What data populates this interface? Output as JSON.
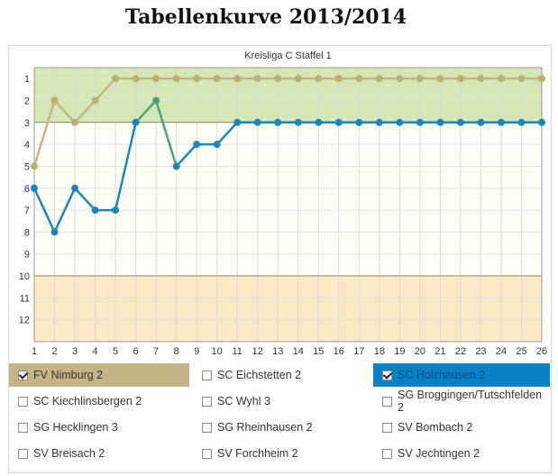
{
  "page": {
    "title": "Tabellenkurve 2013/2014"
  },
  "colors": {
    "band_top": "#d5e7b5",
    "band_mid": "#fffef6",
    "band_bottom": "#fbe9c6",
    "series_nimburg": "#c5b487",
    "series_nimburg_dot": "#bdb16e",
    "series_holzhausen": "#1c86ba",
    "series_green": "#4aa37a",
    "legend_selected_gold": "#c5b487",
    "legend_selected_blue": "#0a80c7"
  },
  "chart_data": {
    "type": "line",
    "title": "Kreisliga C Staffel 1",
    "x": [
      1,
      2,
      3,
      4,
      5,
      6,
      7,
      8,
      9,
      10,
      11,
      12,
      13,
      14,
      15,
      16,
      17,
      18,
      19,
      20,
      21,
      22,
      23,
      24,
      25,
      26
    ],
    "ylim": [
      1,
      12
    ],
    "y_reversed": true,
    "y_ticks": [
      1,
      2,
      3,
      4,
      5,
      6,
      7,
      8,
      9,
      10,
      11,
      12
    ],
    "bands": [
      {
        "from": 0.5,
        "to": 3,
        "color": "#d5e7b5"
      },
      {
        "from": 3,
        "to": 10,
        "color": "#fffef6"
      },
      {
        "from": 10,
        "to": 13,
        "color": "#fbe9c6"
      }
    ],
    "series": [
      {
        "name": "FV Nimburg 2",
        "color": "#c5b487",
        "values": [
          5,
          2,
          3,
          2,
          1,
          1,
          1,
          1,
          1,
          1,
          1,
          1,
          1,
          1,
          1,
          1,
          1,
          1,
          1,
          1,
          1,
          1,
          1,
          1,
          1,
          1
        ]
      },
      {
        "name": "SC Holzhausen 2",
        "color": "#1c86ba",
        "values": [
          6,
          8,
          6,
          7,
          7,
          3,
          2,
          5,
          4,
          4,
          3,
          3,
          3,
          3,
          3,
          3,
          3,
          3,
          3,
          3,
          3,
          3,
          3,
          3,
          3,
          3
        ]
      }
    ],
    "grid": true
  },
  "legend": {
    "items": [
      {
        "label": "FV Nimburg 2",
        "checked": true,
        "style": "selected-gold"
      },
      {
        "label": "SC Eichstetten 2",
        "checked": false,
        "style": ""
      },
      {
        "label": "SC Holzhausen 2",
        "checked": true,
        "style": "selected-blue"
      },
      {
        "label": "SC Kiechlinsbergen 2",
        "checked": false,
        "style": ""
      },
      {
        "label": "SC Wyhl 3",
        "checked": false,
        "style": ""
      },
      {
        "label": "SG Broggingen/Tutschfelden 2",
        "checked": false,
        "style": ""
      },
      {
        "label": "SG Hecklingen 3",
        "checked": false,
        "style": ""
      },
      {
        "label": "SG Rheinhausen 2",
        "checked": false,
        "style": ""
      },
      {
        "label": "SV Bombach 2",
        "checked": false,
        "style": ""
      },
      {
        "label": "SV Breisach 2",
        "checked": false,
        "style": ""
      },
      {
        "label": "SV Forchheim 2",
        "checked": false,
        "style": ""
      },
      {
        "label": "SV Jechtingen 2",
        "checked": false,
        "style": ""
      }
    ]
  }
}
